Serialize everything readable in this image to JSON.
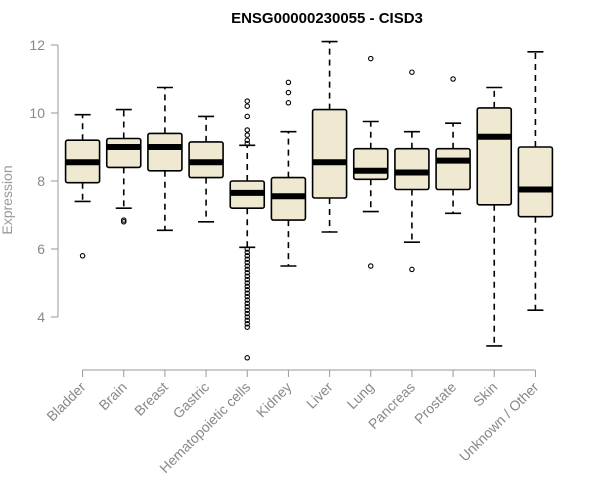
{
  "chart_data": {
    "type": "boxplot",
    "title": "ENSG00000230055 - CISD3",
    "xlabel": "",
    "ylabel": "Expression",
    "ylim": [
      3.0,
      12.2
    ],
    "yticks": [
      4,
      6,
      8,
      10,
      12
    ],
    "categories": [
      "Bladder",
      "Brain",
      "Breast",
      "Gastric",
      "Hematopoietic cells",
      "Kidney",
      "Liver",
      "Lung",
      "Pancreas",
      "Prostate",
      "Skin",
      "Unknown / Other"
    ],
    "boxes": [
      {
        "name": "Bladder",
        "whisker_low": 7.4,
        "q1": 7.95,
        "median": 8.55,
        "q3": 9.2,
        "whisker_high": 9.95,
        "outliers": [
          5.8
        ]
      },
      {
        "name": "Brain",
        "whisker_low": 7.2,
        "q1": 8.4,
        "median": 9.0,
        "q3": 9.25,
        "whisker_high": 10.1,
        "outliers": [
          6.8,
          6.85
        ]
      },
      {
        "name": "Breast",
        "whisker_low": 6.55,
        "q1": 8.3,
        "median": 9.0,
        "q3": 9.4,
        "whisker_high": 10.75,
        "outliers": []
      },
      {
        "name": "Gastric",
        "whisker_low": 6.8,
        "q1": 8.1,
        "median": 8.55,
        "q3": 9.15,
        "whisker_high": 9.9,
        "outliers": []
      },
      {
        "name": "Hematopoietic cells",
        "whisker_low": 6.05,
        "q1": 7.2,
        "median": 7.65,
        "q3": 8.0,
        "whisker_high": 9.05,
        "outliers": [
          2.8,
          3.7,
          3.8,
          3.9,
          4.0,
          4.1,
          4.2,
          4.3,
          4.4,
          4.5,
          4.6,
          4.7,
          4.8,
          4.9,
          5.0,
          5.1,
          5.2,
          5.3,
          5.4,
          5.5,
          5.6,
          5.7,
          5.8,
          5.9,
          6.0,
          9.1,
          9.2,
          9.35,
          9.5,
          9.9,
          10.2,
          10.35
        ]
      },
      {
        "name": "Kidney",
        "whisker_low": 5.5,
        "q1": 6.85,
        "median": 7.55,
        "q3": 8.1,
        "whisker_high": 9.45,
        "outliers": [
          10.3,
          10.6,
          10.9
        ]
      },
      {
        "name": "Liver",
        "whisker_low": 6.5,
        "q1": 7.5,
        "median": 8.55,
        "q3": 10.1,
        "whisker_high": 12.1,
        "outliers": []
      },
      {
        "name": "Lung",
        "whisker_low": 7.1,
        "q1": 8.05,
        "median": 8.3,
        "q3": 8.95,
        "whisker_high": 9.75,
        "outliers": [
          5.5,
          11.6
        ]
      },
      {
        "name": "Pancreas",
        "whisker_low": 6.2,
        "q1": 7.75,
        "median": 8.25,
        "q3": 8.95,
        "whisker_high": 9.45,
        "outliers": [
          5.4,
          11.2
        ]
      },
      {
        "name": "Prostate",
        "whisker_low": 7.05,
        "q1": 7.75,
        "median": 8.6,
        "q3": 8.95,
        "whisker_high": 9.7,
        "outliers": [
          11.0
        ]
      },
      {
        "name": "Skin",
        "whisker_low": 3.15,
        "q1": 7.3,
        "median": 9.3,
        "q3": 10.15,
        "whisker_high": 10.75,
        "outliers": []
      },
      {
        "name": "Unknown / Other",
        "whisker_low": 4.2,
        "q1": 6.95,
        "median": 7.75,
        "q3": 9.0,
        "whisker_high": 11.8,
        "outliers": []
      }
    ]
  }
}
